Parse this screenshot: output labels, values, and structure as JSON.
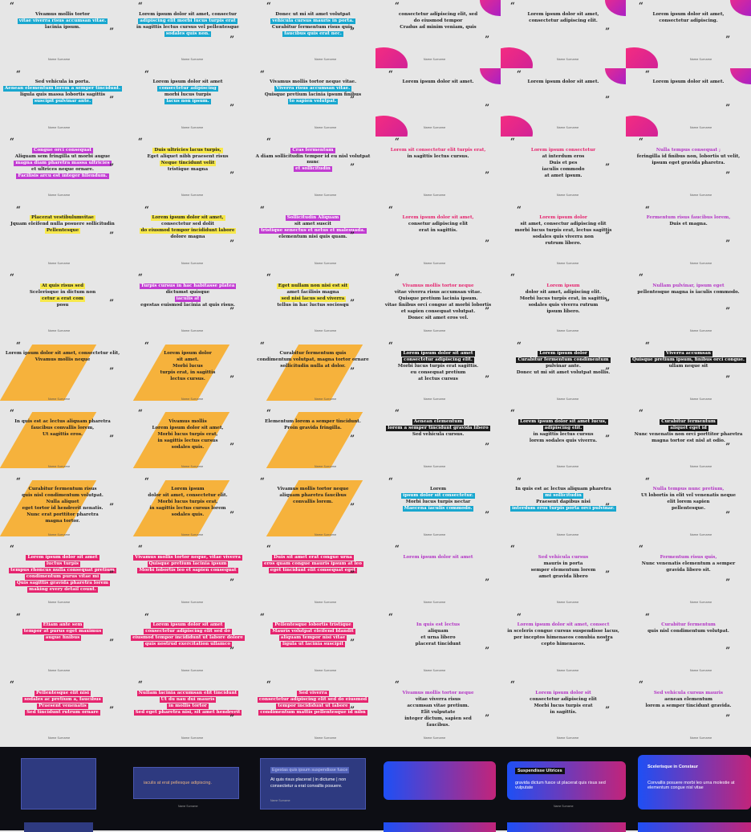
{
  "grid": {
    "cells": [
      {
        "style": "cyan",
        "lines": [
          "Vivamus mollis tortor",
          "vitae viverra risus accumsan vitae.",
          "lacinia ipsum."
        ]
      },
      {
        "style": "cyan",
        "lines": [
          "Lorem ipsum dolor sit amet, consectur",
          "adipiscing elit morbi lucus turpis erat",
          "in sagittis lectus cursus vel pellentesque",
          "sodales quis non."
        ]
      },
      {
        "style": "cyan",
        "lines": [
          "Donec ut mi sit amet volutpat",
          "vehicula cursus mauris in porta.",
          "Curabitur fermentum risus quis.",
          "faucibus quis erat nec."
        ]
      },
      {
        "style": "pink-shape",
        "lines": [
          "consectetur adipiscing elit, sed",
          "do eiusmod tempor",
          "Cradus ad minim veniam, quis"
        ]
      },
      {
        "style": "pink-shape",
        "lines": [
          "Lorem ipsum dolor sit amet,",
          "consectetur adipiscing elit."
        ]
      },
      {
        "style": "pink-shape",
        "lines": [
          "Lorem ipsum dolor sit amet,",
          "consectetur adipiscing."
        ]
      },
      {
        "style": "cyan",
        "lines": [
          "Sed vehicula in porta.",
          "Aenean elementum lorem a semper tincidunt.",
          "ligula quis massa lobortis sagittis",
          "suscipit pulvinar ante."
        ]
      },
      {
        "style": "cyan",
        "lines": [
          "Lorem ipsum dolor sit amet",
          "consectetur adipiscing",
          "morbi lucus turpis",
          "lacus non ipsum."
        ]
      },
      {
        "style": "cyan",
        "lines": [
          "Vivamus mollis tortor neque vitae.",
          "Viverra risus accumsan vitae.",
          "Quisque pretium lacinia ipsum finibus",
          "to sapien volutpat."
        ]
      },
      {
        "style": "pink-shape",
        "lines": [
          "Lorem ipsum dolor sit amet."
        ]
      },
      {
        "style": "pink-shape",
        "lines": [
          "Lorem ipsum dolor sit amet."
        ]
      },
      {
        "style": "pink-shape",
        "lines": [
          "Lorem ipsum dolor sit amet."
        ]
      },
      {
        "style": "magenta",
        "lines": [
          "Congue orci consequat",
          "Aliquam sem fringilla ut morbi augue",
          "magna diam pharetra massa ultricies",
          "et ultrices neque ornare.",
          "Facilisis arcu est integer fillendum."
        ]
      },
      {
        "style": "yellow",
        "lines": [
          "Duis ultricies lacus turpis,",
          "Eget aliquet nibh praesent risus",
          "Neque tincidunt velit",
          "tristique magna"
        ]
      },
      {
        "style": "magenta",
        "lines": [
          "Cras fermentum",
          "A diam sollicitudin tempor id eu nisl volutpat nunc",
          "et sollicitudin"
        ]
      },
      {
        "style": "pink-text",
        "lines": [
          "Lorem sit consectetur elit turpis erat,",
          "in sagittis lectus cursus."
        ]
      },
      {
        "style": "pink-text",
        "lines": [
          "Lorem ipsum consectetur",
          "at interdum eros",
          "Duis et pes",
          "iaculis commodo",
          "at amet ipsum."
        ]
      },
      {
        "style": "magenta-text",
        "lines": [
          "Nulla tempus consequat ;",
          "feringilla id finibus non, lobortis ut velit,",
          "ipsum eget gravida pharetra."
        ]
      },
      {
        "style": "yellow",
        "lines": [
          "Placerat vestibulumvitae",
          "Jquam eleifend nulla posuere sollicitudin",
          "Pellentesque"
        ]
      },
      {
        "style": "yellow",
        "lines": [
          "Lorem ipsum dolor sit amet,",
          "consectetur sed dolit",
          "do eiusmod tempor incididunt labore",
          "dolore magna"
        ]
      },
      {
        "style": "magenta",
        "lines": [
          "Sollicitudin Aliquam",
          "sit amet suscit",
          "tristique senectus et netus et malesuada.",
          "elementum nisi quis quam."
        ]
      },
      {
        "style": "pink-text",
        "lines": [
          "Lorem ipsum dolor sit amet,",
          "consetur adipiscing elit",
          "erat in sagittis."
        ]
      },
      {
        "style": "pink-text",
        "lines": [
          "Lorem ipsum dolor",
          "sit amet, consectur adipiscing elit",
          "morbi lucus turpis erat, lectus sagittis",
          "sodales quis viverra non",
          "rutrum libero."
        ]
      },
      {
        "style": "magenta-text",
        "lines": [
          "Fermentum risus faucibus lorem,",
          "Duis et magna."
        ]
      },
      {
        "style": "yellow",
        "lines": [
          "At quis risus sed",
          "Scelerisque in dictum non",
          "cetur a erat com",
          "posu"
        ]
      },
      {
        "style": "magenta",
        "lines": [
          "Turpis cursus in hac habitasse platea",
          "dictumst quisque",
          "iaculis at",
          "egestas euismod lacinia at quis risus."
        ]
      },
      {
        "style": "yellow",
        "lines": [
          "Eget nullam non nisi est sit",
          "amet facilisis magna",
          "sed nisi lacus sed viverra",
          "tellus in hac luctus sociosqu"
        ]
      },
      {
        "style": "pink-text",
        "lines": [
          "Vivamus mollis tortor neque",
          "vitae viverra risus accumsan vitae.",
          "Quisque pretium lacinia ipsum.",
          "vitae finibus orci congue at morbi lobortis",
          "et sapien consequat volutpat.",
          "Donec sit amet eros vel."
        ]
      },
      {
        "style": "pink-text",
        "lines": [
          "Lorem ipsum",
          "dolor sit amet, adipiscing elit.",
          "Morbi lucus turpis erat, in sagittis",
          "sodales quis viverra rutrum",
          "ipsum libero."
        ]
      },
      {
        "style": "magenta-text",
        "lines": [
          "Nullam pulvinar, ipsum eget",
          "pellentesque magna is iaculis commodo."
        ]
      },
      {
        "style": "orange",
        "lines": [
          "Lorem ipsum dolor sit amet, consectetur elit,",
          "Vivamus mollis neque"
        ]
      },
      {
        "style": "orange",
        "lines": [
          "Lorem ipsum dolor",
          "sit amet.",
          "Morbi lucus",
          "turpis erat, in sagittis",
          "lectus cursus."
        ]
      },
      {
        "style": "orange",
        "lines": [
          "Curabitur fermentum quis",
          "condimentum volutpat, magna tortor ornare",
          "sollicitudin nulla at dolor."
        ]
      },
      {
        "style": "dark",
        "lines": [
          "Lorem ipsum dolor sit amet",
          "consectetur adipiscing elit.",
          "Morbi lucus turpis erat sagittis.",
          "eu consequat pretium",
          "at lectus cursus"
        ]
      },
      {
        "style": "dark",
        "lines": [
          "Lorem ipsum dolor",
          "Curabitur fermentum condimentum",
          "pulvinar ante.",
          "Donec ut mi sit amet volutpat mollis."
        ]
      },
      {
        "style": "dark",
        "lines": [
          "Viverra accumsan",
          "Quisque pretium ipsum, finibus orci congue.",
          "ullam neque sit"
        ]
      },
      {
        "style": "orange",
        "lines": [
          "In quis est ac lectus aliquam pharetra",
          "faucibus convallis lorem,",
          "Ut sagittis eros."
        ]
      },
      {
        "style": "orange",
        "lines": [
          "Vivamus mollis",
          "Lorem ipsum dolor sit amet,",
          "Morbi lucus turpis erat,",
          "in sagittis lectus cursus",
          "sodales quis."
        ]
      },
      {
        "style": "orange",
        "lines": [
          "Elementum lorem a semper tincidunt.",
          "Proin gravida fringilla."
        ]
      },
      {
        "style": "dark",
        "lines": [
          "Aenean elementum",
          "lorem a semper tincidunt gravida libero",
          "Sed vehicula cursus."
        ]
      },
      {
        "style": "dark",
        "lines": [
          "Lorem ipsum dolor sit amet lucus,",
          "adipiscing elit.",
          "in sagittis lectus cursus",
          "lorem sodales quis viverra."
        ]
      },
      {
        "style": "dark",
        "lines": [
          "Curabitur fermentum",
          "aliquet eget id",
          "Nunc venenatis non orci porttitor pharetra",
          "magna tortor est nisl at odio."
        ]
      },
      {
        "style": "orange",
        "lines": [
          "Curabitur fermentum risus",
          "quis nisl condimentum volutpat.",
          "Nulla aliquet",
          "eget tortor id hendrerit nenatis.",
          "Nunc erat porttitor pharetra",
          "magna tortor."
        ]
      },
      {
        "style": "orange",
        "lines": [
          "Lorem ipsum",
          "dolor sit amet, consectetur elit.",
          "Morbi lucus turpis erat,",
          "in sagittis lectus cursus lorem",
          "sodales quis."
        ]
      },
      {
        "style": "orange",
        "lines": [
          "Vivamus mollis tortor neque",
          "aliquam pharetra faucibus",
          "convallis lorem."
        ]
      },
      {
        "style": "cyan-soft",
        "lines": [
          "Lorem",
          "ipsum dolor sit consectetur.",
          "Morbi lucus turpis nectar",
          "Maecena iaculis commodo."
        ]
      },
      {
        "style": "cyan-soft",
        "lines": [
          "In quis est ac lectus aliquam pharetra",
          "mi sollicitudin",
          "Praesent dapibus nisi",
          "interdum eros turpis porta orci pulvinar."
        ]
      },
      {
        "style": "magenta-text",
        "lines": [
          "Nulla tempus nunc pretium,",
          "Ut lobortis in elit vel venenatis neque",
          "elit lorem sapien",
          "pellentesque."
        ]
      },
      {
        "style": "pink",
        "lines": [
          "Lorem ipsum dolor sit amet",
          "luctus turpis",
          "tempus rhoncus nulla consequat pretium",
          "condimentum purus vitae mi",
          "Quis sagittis gravida pharetra lorem",
          "making every detail count."
        ]
      },
      {
        "style": "pink",
        "lines": [
          "Vivamus mollis tortor neque, vitae viverra",
          "Quisque pretium lacinia ipsum",
          "Morbi lobortis leo et sapien consequat"
        ]
      },
      {
        "style": "pink",
        "lines": [
          "Duis sit amet erat congue urna",
          "eros quam congue mauris ipsum at leo",
          "eget tincidunt elit consequat eget"
        ]
      },
      {
        "style": "magenta-text",
        "lines": [
          "Lorem ipsum dolor sit amet"
        ]
      },
      {
        "style": "magenta-text",
        "lines": [
          "Sed vehicula cursus",
          "mauris in porta",
          "semper elementum lorem",
          "amet gravida libero"
        ]
      },
      {
        "style": "magenta-text",
        "lines": [
          "Fermentum risus quis,",
          "Nunc venenatis elementum a semper",
          "gravida libero sit."
        ]
      },
      {
        "style": "pink",
        "lines": [
          "Etiam ante sem",
          "tempor at purus eget maximus",
          "augue finibus"
        ]
      },
      {
        "style": "pink",
        "lines": [
          "Lorem ipsum dolor sit amet",
          "consectetur adipiscing elit sed do",
          "eiusmod tempor incididunt ut labore dolore",
          "quis nostrud exercitation ullamco"
        ]
      },
      {
        "style": "pink",
        "lines": [
          "Pellentesque lobortis tristique",
          "Mauris volutpat eleifend blandit",
          "aliquam tempor nisi vitae",
          "ligula ut lacinia suscipit"
        ]
      },
      {
        "style": "magenta-text",
        "lines": [
          "In quis est lectus",
          "aliquam",
          "et urna libero",
          "placerat tincidunt"
        ]
      },
      {
        "style": "magenta-text",
        "lines": [
          "Lorem ipsum dolor sit amet, consect",
          "in sceleris congue cursus suspendisse lacus,",
          "per inceptos himenaeos conubia nostra",
          "cepto himenaeos."
        ]
      },
      {
        "style": "magenta-text",
        "lines": [
          "Curabitur fermentum",
          "quis nisl condimentum volutpat."
        ]
      },
      {
        "style": "pink",
        "lines": [
          "Pellentesque elit nisi",
          "sodales ac pretium a, faucibus",
          "Praesent venenatis",
          "Sed tincidunt rutrum ornare"
        ]
      },
      {
        "style": "pink",
        "lines": [
          "Nullam lacinia accumsan elit tincidunt",
          "Ut du nau dui mauris",
          "in mollis tortor",
          "Sed eget pharetra nisi, sit amet hendrerit"
        ]
      },
      {
        "style": "pink",
        "lines": [
          "Sed viverra",
          "consectetur adipiscing elit sed do eiusmod",
          "tempor incididunt ut labore",
          "condimentum mattis pellentesque id nibn"
        ]
      },
      {
        "style": "magenta-text",
        "lines": [
          "Vivamus mollis tortor neque",
          "vitae viverra risus",
          "accumsan vitae pretium.",
          "Elit vulputate",
          "integer dictum, sapien sed",
          "faucibus."
        ]
      },
      {
        "style": "magenta-text",
        "lines": [
          "Lorem ipsum dolor sit",
          "consectetur adipiscing elit",
          "Morbi lucus turpis erat",
          "in sagittis."
        ]
      },
      {
        "style": "magenta-text",
        "lines": [
          "Sed vehicula cursus mauris",
          "aenean elementum",
          "lorem a semper tincidunt gravida."
        ]
      }
    ],
    "author": "Name Surname"
  },
  "bottom": {
    "cards": [
      {
        "title": "",
        "text": ""
      },
      {
        "title": "",
        "text": "iaculis at erat pellesque adipiscing."
      },
      {
        "title": "Egestas quis ipsum suspendisse fusce",
        "text": "At quis risus placerat | in dictume | non consectetur a erat convallis posuere."
      },
      {
        "title": "",
        "text": ""
      },
      {
        "title": "Suspendisse Ultrices",
        "text": "gravida dictum fusce ut placerat quis risus sed vulputate"
      },
      {
        "title": "Scelerisque in Constaur",
        "text": "Convallis posuere morbi leo urna molestie at elementum congue nisl vitae"
      }
    ],
    "name_label": "Name Surname",
    "colors": {
      "navy": "#2e3a80",
      "blue": "#1e4ff5",
      "magenta": "#c2247a",
      "blackbg": "#0d0e14"
    }
  }
}
